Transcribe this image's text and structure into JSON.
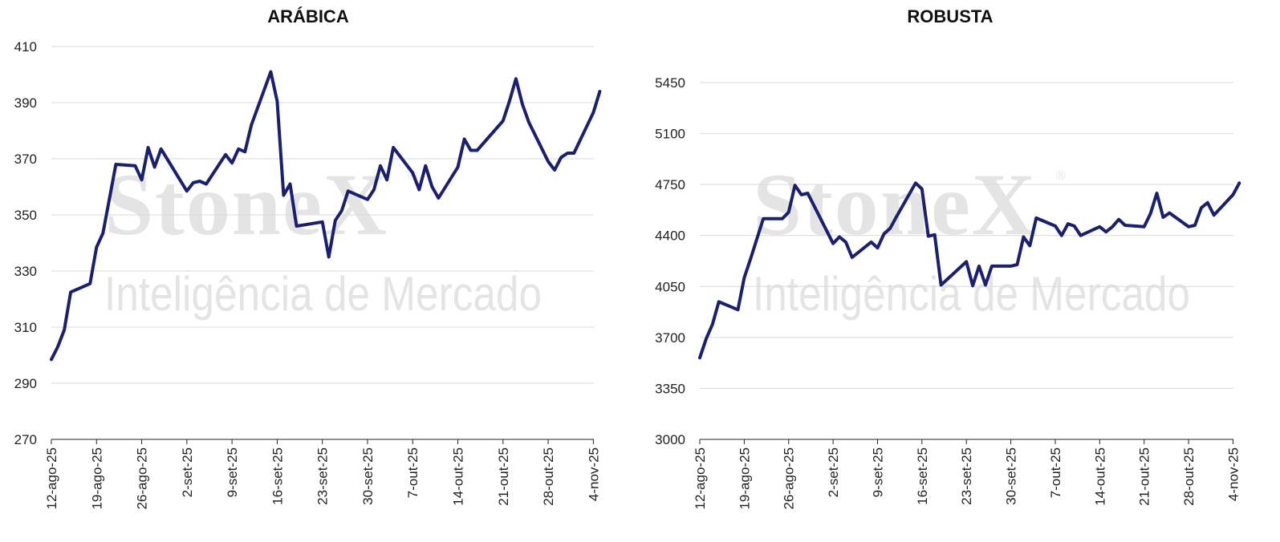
{
  "colors": {
    "line": "#1a1f71",
    "grid": "#d9d9d9",
    "axis": "#222222",
    "watermark": "#e4e4e4"
  },
  "watermark": {
    "brand": "StoneX",
    "tagline": "Inteligência de Mercado",
    "reg": "®"
  },
  "chart_data": [
    {
      "type": "line",
      "title": "ARÁBICA",
      "xlabel": "",
      "ylabel": "",
      "ylim": [
        270,
        410
      ],
      "yticks": [
        270,
        290,
        310,
        330,
        350,
        370,
        390,
        410
      ],
      "xlim": [
        0,
        84
      ],
      "grid": true,
      "legend": "none",
      "xticks": [
        {
          "x": 0,
          "label": "12-ago-25"
        },
        {
          "x": 7,
          "label": "19-ago-25"
        },
        {
          "x": 14,
          "label": "26-ago-25"
        },
        {
          "x": 21,
          "label": "2-set-25"
        },
        {
          "x": 28,
          "label": "9-set-25"
        },
        {
          "x": 35,
          "label": "16-set-25"
        },
        {
          "x": 42,
          "label": "23-set-25"
        },
        {
          "x": 49,
          "label": "30-set-25"
        },
        {
          "x": 56,
          "label": "7-out-25"
        },
        {
          "x": 63,
          "label": "14-out-25"
        },
        {
          "x": 70,
          "label": "21-out-25"
        },
        {
          "x": 77,
          "label": "28-out-25"
        },
        {
          "x": 84,
          "label": "4-nov-25"
        }
      ],
      "series": [
        {
          "color": "#1a1f71",
          "points": [
            [
              0,
              298.5
            ],
            [
              1,
              303
            ],
            [
              2,
              309
            ],
            [
              3,
              322.5
            ],
            [
              6,
              325.5
            ],
            [
              7,
              338.5
            ],
            [
              8,
              343.5
            ],
            [
              10,
              368
            ],
            [
              13,
              367.5
            ],
            [
              14,
              362.5
            ],
            [
              15,
              374
            ],
            [
              16,
              367
            ],
            [
              17,
              373.5
            ],
            [
              21,
              358.5
            ],
            [
              22,
              361.5
            ],
            [
              23,
              362
            ],
            [
              24,
              361
            ],
            [
              27,
              371.5
            ],
            [
              28,
              368.5
            ],
            [
              29,
              373.5
            ],
            [
              30,
              372.5
            ],
            [
              31,
              382
            ],
            [
              34,
              401
            ],
            [
              35,
              390.5
            ],
            [
              36,
              357
            ],
            [
              37,
              361
            ],
            [
              38,
              346
            ],
            [
              42,
              347.5
            ],
            [
              43,
              335
            ],
            [
              44,
              348
            ],
            [
              45,
              351.5
            ],
            [
              46,
              358.5
            ],
            [
              49,
              355.5
            ],
            [
              50,
              359
            ],
            [
              51,
              367.5
            ],
            [
              52,
              362.5
            ],
            [
              53,
              374
            ],
            [
              56,
              365
            ],
            [
              57,
              359
            ],
            [
              58,
              367.5
            ],
            [
              59,
              360
            ],
            [
              60,
              356
            ],
            [
              63,
              367
            ],
            [
              64,
              377
            ],
            [
              65,
              373
            ],
            [
              66,
              373
            ],
            [
              70,
              383.5
            ],
            [
              71,
              390.5
            ],
            [
              72,
              398.5
            ],
            [
              73,
              389.5
            ],
            [
              74,
              383
            ],
            [
              77,
              369
            ],
            [
              78,
              366
            ],
            [
              79,
              370.5
            ],
            [
              80,
              372
            ],
            [
              81,
              372
            ],
            [
              84,
              386.5
            ],
            [
              85,
              394
            ]
          ]
        }
      ]
    },
    {
      "type": "line",
      "title": "ROBUSTA",
      "xlabel": "",
      "ylabel": "",
      "ylim": [
        3000,
        5450
      ],
      "yticks": [
        3000,
        3350,
        3700,
        4050,
        4400,
        4750,
        5100,
        5450
      ],
      "xlim": [
        0,
        84
      ],
      "grid": true,
      "legend": "none",
      "xticks": [
        {
          "x": 0,
          "label": "12-ago-25"
        },
        {
          "x": 7,
          "label": "19-ago-25"
        },
        {
          "x": 14,
          "label": "26-ago-25"
        },
        {
          "x": 21,
          "label": "2-set-25"
        },
        {
          "x": 28,
          "label": "9-set-25"
        },
        {
          "x": 35,
          "label": "16-set-25"
        },
        {
          "x": 42,
          "label": "23-set-25"
        },
        {
          "x": 49,
          "label": "30-set-25"
        },
        {
          "x": 56,
          "label": "7-out-25"
        },
        {
          "x": 63,
          "label": "14-out-25"
        },
        {
          "x": 70,
          "label": "21-out-25"
        },
        {
          "x": 77,
          "label": "28-out-25"
        },
        {
          "x": 84,
          "label": "4-nov-25"
        }
      ],
      "series": [
        {
          "color": "#1a1f71",
          "points": [
            [
              0,
              3560
            ],
            [
              1,
              3690
            ],
            [
              2,
              3790
            ],
            [
              3,
              3945
            ],
            [
              6,
              3890
            ],
            [
              7,
              4110
            ],
            [
              8,
              4240
            ],
            [
              10,
              4515
            ],
            [
              13,
              4515
            ],
            [
              14,
              4560
            ],
            [
              15,
              4745
            ],
            [
              16,
              4680
            ],
            [
              17,
              4690
            ],
            [
              21,
              4345
            ],
            [
              22,
              4390
            ],
            [
              23,
              4355
            ],
            [
              24,
              4250
            ],
            [
              27,
              4355
            ],
            [
              28,
              4315
            ],
            [
              29,
              4410
            ],
            [
              30,
              4450
            ],
            [
              31,
              4530
            ],
            [
              34,
              4760
            ],
            [
              35,
              4720
            ],
            [
              36,
              4395
            ],
            [
              37,
              4405
            ],
            [
              38,
              4060
            ],
            [
              42,
              4220
            ],
            [
              43,
              4055
            ],
            [
              44,
              4190
            ],
            [
              45,
              4060
            ],
            [
              46,
              4190
            ],
            [
              49,
              4190
            ],
            [
              50,
              4200
            ],
            [
              51,
              4390
            ],
            [
              52,
              4330
            ],
            [
              53,
              4520
            ],
            [
              56,
              4465
            ],
            [
              57,
              4400
            ],
            [
              58,
              4480
            ],
            [
              59,
              4465
            ],
            [
              60,
              4400
            ],
            [
              63,
              4460
            ],
            [
              64,
              4425
            ],
            [
              65,
              4460
            ],
            [
              66,
              4510
            ],
            [
              67,
              4470
            ],
            [
              70,
              4460
            ],
            [
              71,
              4550
            ],
            [
              72,
              4690
            ],
            [
              73,
              4525
            ],
            [
              74,
              4555
            ],
            [
              77,
              4460
            ],
            [
              78,
              4470
            ],
            [
              79,
              4590
            ],
            [
              80,
              4625
            ],
            [
              81,
              4540
            ],
            [
              84,
              4680
            ],
            [
              85,
              4760
            ]
          ]
        }
      ]
    }
  ]
}
